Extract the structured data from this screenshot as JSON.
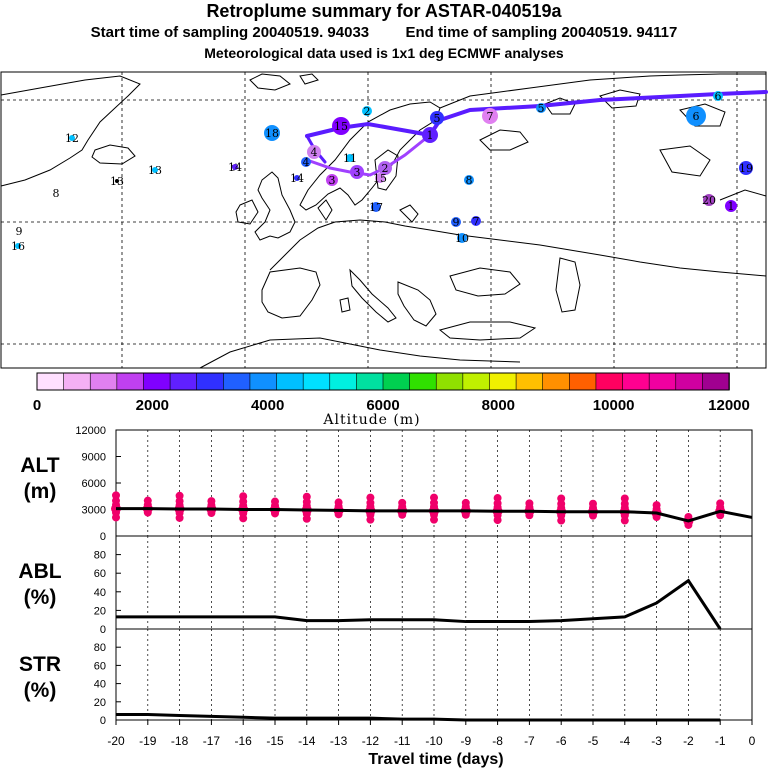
{
  "header": {
    "title": "Retroplume summary for ASTAR-040519a",
    "start_label": "Start time of sampling 20040519. 94033",
    "end_label": "End time of sampling 20040519. 94117",
    "met_label": "Meteorological data used is 1x1 deg ECMWF analyses"
  },
  "colorbar": {
    "title": "Altitude (m)",
    "ticks": [
      "0",
      "2000",
      "4000",
      "6000",
      "8000",
      "10000",
      "12000"
    ],
    "colors": [
      "#ffe0ff",
      "#f4b0f4",
      "#e080f0",
      "#c040f0",
      "#8000ff",
      "#6020ff",
      "#3030ff",
      "#2060ff",
      "#1090ff",
      "#00c0ff",
      "#00e0ff",
      "#00f0e0",
      "#00e0a0",
      "#00d050",
      "#30e000",
      "#90e000",
      "#c0f000",
      "#f0f000",
      "#ffc000",
      "#ff9000",
      "#ff6000",
      "#ff0060",
      "#ff0090",
      "#f000a0",
      "#d000a0",
      "#a00090"
    ]
  },
  "map": {
    "cluster_labels": [
      "1",
      "2",
      "3",
      "4",
      "5",
      "6",
      "7",
      "8",
      "9",
      "10",
      "11",
      "12",
      "13",
      "14",
      "15",
      "16",
      "17",
      "18",
      "19",
      "20"
    ]
  },
  "chart_data": [
    {
      "type": "line",
      "name": "ALT",
      "ylabel": "ALT (m)",
      "ylabel_lines": [
        "ALT",
        "(m)"
      ],
      "ylim": [
        0,
        12000
      ],
      "yticks": [
        "0",
        "3000",
        "6000",
        "9000",
        "12000"
      ],
      "x": [
        -20,
        -19,
        -18,
        -17,
        -16,
        -15,
        -14,
        -13,
        -12,
        -11,
        -10,
        -9,
        -8,
        -7,
        -6,
        -5,
        -4,
        -3,
        -2,
        -1,
        0
      ],
      "values": [
        3100,
        3100,
        3050,
        3050,
        3000,
        3000,
        2950,
        2900,
        2850,
        2850,
        2850,
        2850,
        2800,
        2800,
        2750,
        2750,
        2750,
        2600,
        1700,
        2800,
        2100
      ]
    },
    {
      "type": "line",
      "name": "ABL",
      "ylabel": "ABL (%)",
      "ylabel_lines": [
        "ABL",
        "(%)"
      ],
      "ylim": [
        0,
        100
      ],
      "yticks": [
        "0",
        "20",
        "40",
        "60",
        "80"
      ],
      "x": [
        -20,
        -19,
        -18,
        -17,
        -16,
        -15,
        -14,
        -13,
        -12,
        -11,
        -10,
        -9,
        -8,
        -7,
        -6,
        -5,
        -4,
        -3,
        -2,
        -1
      ],
      "values": [
        13,
        13,
        13,
        13,
        13,
        13,
        9,
        9,
        10,
        10,
        10,
        8,
        8,
        8,
        9,
        11,
        13,
        28,
        52,
        0
      ]
    },
    {
      "type": "line",
      "name": "STR",
      "ylabel": "STR (%)",
      "ylabel_lines": [
        "STR",
        "(%)"
      ],
      "ylim": [
        0,
        100
      ],
      "yticks": [
        "0",
        "20",
        "40",
        "60",
        "80"
      ],
      "xlabel": "Travel time (days)",
      "xticks": [
        "-20",
        "-19",
        "-18",
        "-17",
        "-16",
        "-15",
        "-14",
        "-13",
        "-12",
        "-11",
        "-10",
        "-9",
        "-8",
        "-7",
        "-6",
        "-5",
        "-4",
        "-3",
        "-2",
        "-1",
        "0"
      ],
      "x": [
        -20,
        -19,
        -18,
        -17,
        -16,
        -15,
        -14,
        -13,
        -12,
        -11,
        -10,
        -9,
        -8,
        -7,
        -6,
        -5,
        -4,
        -3,
        -2,
        -1
      ],
      "values": [
        6,
        6,
        5,
        4,
        3,
        2,
        2,
        2,
        2,
        1,
        1,
        0,
        0,
        0,
        0,
        0,
        0,
        0,
        0,
        0
      ]
    }
  ]
}
